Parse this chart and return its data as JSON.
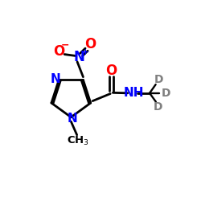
{
  "bg_color": "#ffffff",
  "bond_color": "#000000",
  "N_color": "#0000ff",
  "O_color": "#ff0000",
  "D_color": "#808080",
  "line_width": 2.0,
  "figsize": [
    2.5,
    2.5
  ],
  "dpi": 100,
  "xlim": [
    0,
    10
  ],
  "ylim": [
    0,
    10
  ]
}
